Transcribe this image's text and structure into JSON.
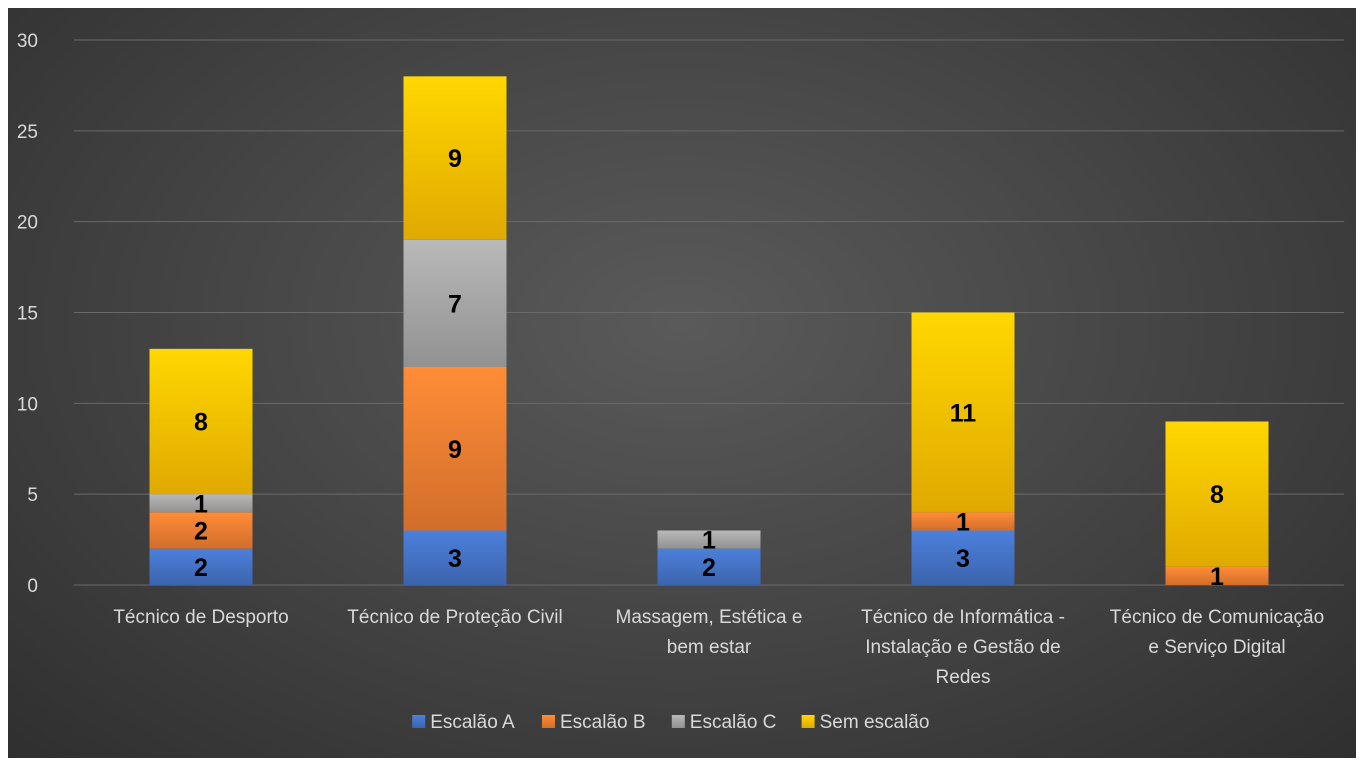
{
  "chart_data": {
    "type": "bar",
    "stacked": true,
    "categories": [
      "Técnico de Desporto",
      "Técnico de Proteção Civil",
      "Massagem, Estética e bem estar",
      "Técnico de Informática - Instalação e Gestão de Redes",
      "Técnico de Comunicação e Serviço Digital"
    ],
    "category_lines": [
      [
        "Técnico de Desporto"
      ],
      [
        "Técnico de Proteção Civil"
      ],
      [
        "Massagem, Estética e",
        "bem estar"
      ],
      [
        "Técnico de Informática -",
        "Instalação e Gestão de",
        "Redes"
      ],
      [
        "Técnico de Comunicação",
        "e Serviço Digital"
      ]
    ],
    "series": [
      {
        "name": "Escalão A",
        "values": [
          2,
          3,
          2,
          3,
          0
        ],
        "color": "#4472c4"
      },
      {
        "name": "Escalão B",
        "values": [
          2,
          9,
          0,
          1,
          1
        ],
        "color": "#ed7d31"
      },
      {
        "name": "Escalão C",
        "values": [
          1,
          7,
          1,
          0,
          0
        ],
        "color": "#a5a5a5"
      },
      {
        "name": "Sem escalão",
        "values": [
          8,
          9,
          0,
          11,
          8
        ],
        "color": "#ffc000"
      }
    ],
    "y_ticks": [
      0,
      5,
      10,
      15,
      20,
      25,
      30
    ],
    "ylim": [
      0,
      30
    ],
    "grid": true,
    "legend_position": "bottom",
    "title": "",
    "xlabel": "",
    "ylabel": ""
  }
}
